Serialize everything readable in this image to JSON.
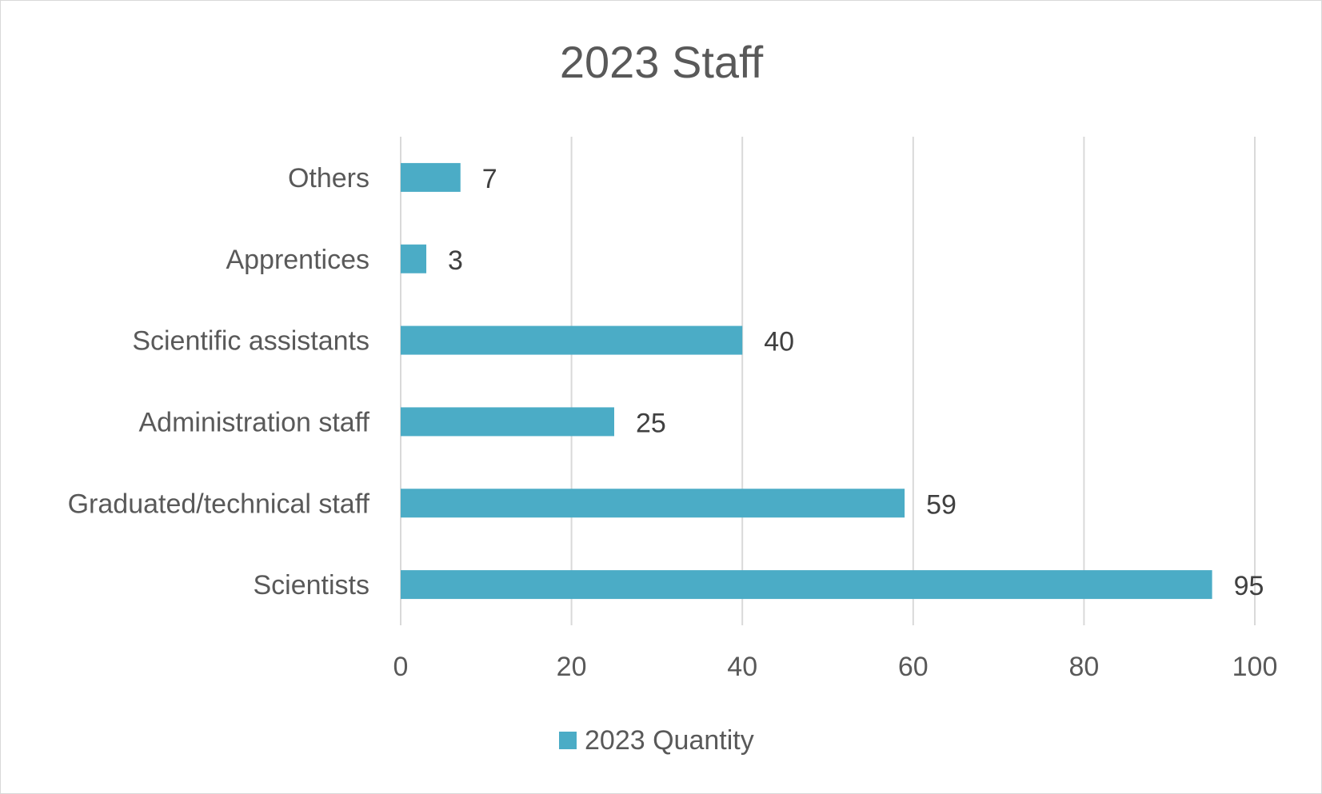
{
  "chart_data": {
    "type": "bar",
    "orientation": "horizontal",
    "title": "2023 Staff",
    "xlabel": "",
    "ylabel": "",
    "categories": [
      "Others",
      "Apprentices",
      "Scientific assistants",
      "Administration staff",
      "Graduated/technical staff",
      "Scientists"
    ],
    "series": [
      {
        "name": "2023 Quantity",
        "values": [
          7,
          3,
          40,
          25,
          59,
          95
        ],
        "color": "#4bacc6"
      }
    ],
    "xlim": [
      0,
      100
    ],
    "xticks": [
      0,
      20,
      40,
      60,
      80,
      100
    ],
    "grid": true,
    "legend_position": "bottom",
    "data_labels": true
  }
}
